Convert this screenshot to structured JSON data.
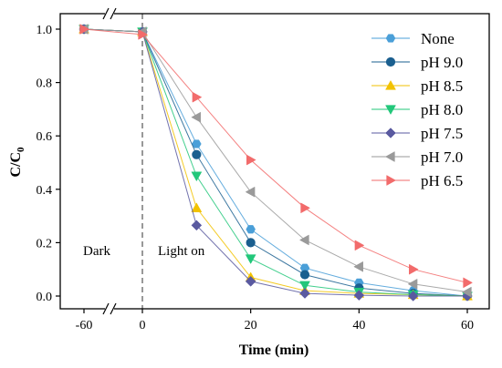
{
  "chart_data": {
    "type": "line",
    "xlabel": "Time (min)",
    "ylabel_main": "C/C",
    "ylabel_sub": "0",
    "xticks": [
      -60,
      0,
      20,
      40,
      60
    ],
    "yticks": [
      0.0,
      0.2,
      0.4,
      0.6,
      0.8,
      1.0
    ],
    "ylim": [
      -0.03,
      1.06
    ],
    "axis_break": "between -60 and 0",
    "legend_position": "top-right",
    "annotations": [
      {
        "text": "Dark",
        "x": -45,
        "y": 0.17
      },
      {
        "text": "Light on",
        "x": 13,
        "y": 0.17
      }
    ],
    "light_on_line_x": 0,
    "series": [
      {
        "name": "None",
        "color": "#4a9fd8",
        "marker": "hexagon",
        "points": [
          [
            -60,
            1.0
          ],
          [
            0,
            0.99
          ],
          [
            10,
            0.57
          ],
          [
            20,
            0.25
          ],
          [
            30,
            0.105
          ],
          [
            40,
            0.05
          ],
          [
            50,
            0.02
          ],
          [
            60,
            0.0
          ]
        ]
      },
      {
        "name": "pH 9.0",
        "color": "#1a5f8f",
        "marker": "circle",
        "points": [
          [
            -60,
            1.0
          ],
          [
            0,
            0.99
          ],
          [
            10,
            0.53
          ],
          [
            20,
            0.2
          ],
          [
            30,
            0.08
          ],
          [
            40,
            0.03
          ],
          [
            50,
            0.01
          ],
          [
            60,
            0.0
          ]
        ]
      },
      {
        "name": "pH 8.5",
        "color": "#f2c200",
        "marker": "triangle-up",
        "points": [
          [
            -60,
            1.0
          ],
          [
            0,
            0.99
          ],
          [
            10,
            0.33
          ],
          [
            20,
            0.07
          ],
          [
            30,
            0.02
          ],
          [
            40,
            0.01
          ],
          [
            50,
            0.005
          ],
          [
            60,
            0.0
          ]
        ]
      },
      {
        "name": "pH 8.0",
        "color": "#22c77a",
        "marker": "triangle-down",
        "points": [
          [
            -60,
            1.0
          ],
          [
            0,
            0.99
          ],
          [
            10,
            0.45
          ],
          [
            20,
            0.14
          ],
          [
            30,
            0.04
          ],
          [
            40,
            0.015
          ],
          [
            50,
            0.005
          ],
          [
            60,
            0.0
          ]
        ]
      },
      {
        "name": "pH 7.5",
        "color": "#5a5aa0",
        "marker": "diamond",
        "points": [
          [
            -60,
            1.0
          ],
          [
            0,
            0.99
          ],
          [
            10,
            0.265
          ],
          [
            20,
            0.055
          ],
          [
            30,
            0.01
          ],
          [
            40,
            0.003
          ],
          [
            50,
            0.0
          ],
          [
            60,
            0.0
          ]
        ]
      },
      {
        "name": "pH 7.0",
        "color": "#9a9a9a",
        "marker": "triangle-left",
        "points": [
          [
            -60,
            1.0
          ],
          [
            0,
            0.99
          ],
          [
            10,
            0.67
          ],
          [
            20,
            0.39
          ],
          [
            30,
            0.21
          ],
          [
            40,
            0.11
          ],
          [
            50,
            0.045
          ],
          [
            60,
            0.015
          ]
        ]
      },
      {
        "name": "pH 6.5",
        "color": "#f26b6b",
        "marker": "triangle-right",
        "points": [
          [
            -60,
            1.0
          ],
          [
            0,
            0.98
          ],
          [
            10,
            0.745
          ],
          [
            20,
            0.51
          ],
          [
            30,
            0.33
          ],
          [
            40,
            0.19
          ],
          [
            50,
            0.1
          ],
          [
            60,
            0.05
          ]
        ]
      }
    ]
  }
}
